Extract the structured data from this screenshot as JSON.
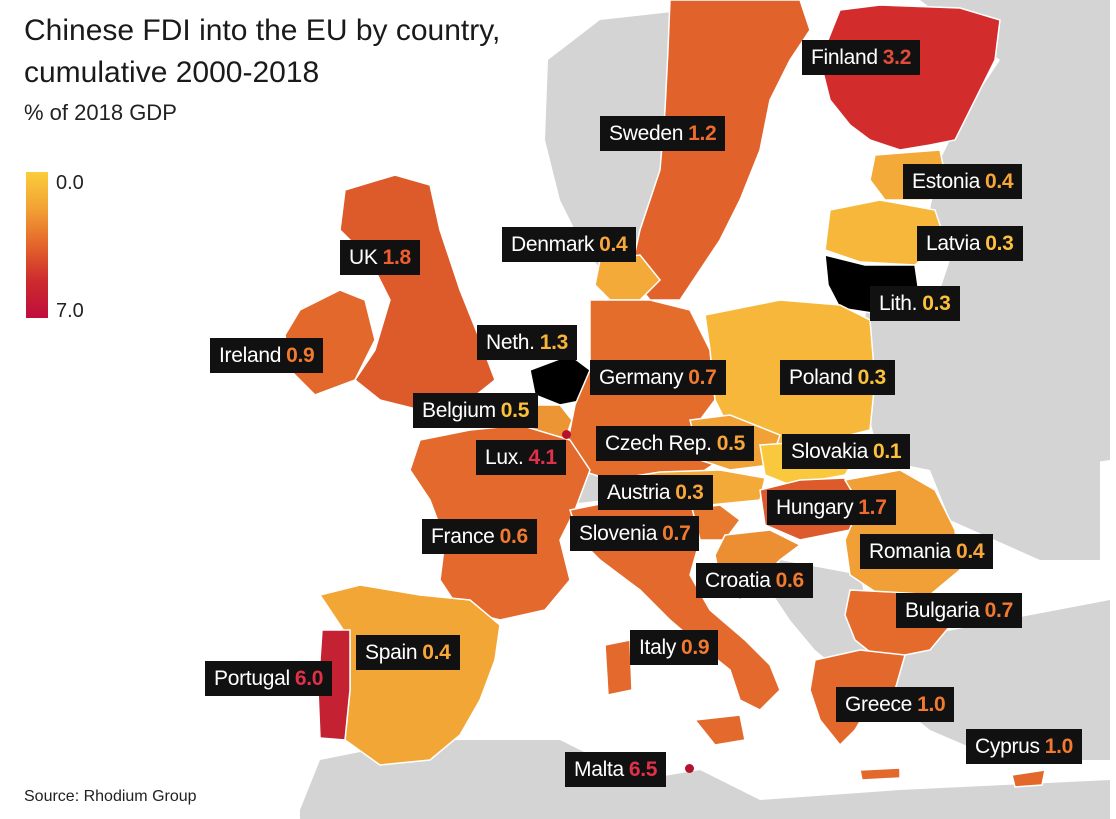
{
  "title_line1": "Chinese FDI into the EU by country,",
  "title_line2": "cumulative 2000-2018",
  "subtitle": "% of 2018 GDP",
  "legend": {
    "min_label": "0.0",
    "max_label": "7.0",
    "colors": [
      "#fbcd3a",
      "#f2a235",
      "#e4652b",
      "#cc2a2e",
      "#c00d3c"
    ]
  },
  "source": "Source: Rhodium Group",
  "colors": {
    "non_eu_land": "#d4d4d4",
    "border": "#ffffff",
    "label_bg": "#111111"
  },
  "countries": [
    {
      "key": "finland",
      "name": "Finland",
      "value": "3.2",
      "fill": "#d22c2c",
      "value_color": "#e04c3c"
    },
    {
      "key": "sweden",
      "name": "Sweden",
      "value": "1.2",
      "fill": "#e1622a",
      "value_color": "#ef6a2e"
    },
    {
      "key": "estonia",
      "name": "Estonia",
      "value": "0.4",
      "fill": "#f4aa38",
      "value_color": "#f8a63a"
    },
    {
      "key": "denmark",
      "name": "Denmark",
      "value": "0.4",
      "fill": "#f4aa38",
      "value_color": "#f8a63a"
    },
    {
      "key": "latvia",
      "name": "Latvia",
      "value": "0.3",
      "fill": "#f7b73b",
      "value_color": "#fbc13c"
    },
    {
      "key": "uk",
      "name": "UK",
      "value": "1.8",
      "fill": "#dd5a2b",
      "value_color": "#ef5e2e"
    },
    {
      "key": "lith",
      "name": "Lith.",
      "value": "0.3",
      "fill": "#f7b73b",
      "value_color": "#fbc13c"
    },
    {
      "key": "ireland",
      "name": "Ireland",
      "value": "0.9",
      "fill": "#e3682b",
      "value_color": "#f07a30"
    },
    {
      "key": "neth",
      "name": "Neth.",
      "value": "1.3",
      "fill": "#e3682b",
      "value_color": "#f6b53a"
    },
    {
      "key": "germany",
      "name": "Germany",
      "value": "0.7",
      "fill": "#e46d2c",
      "value_color": "#f07a30"
    },
    {
      "key": "poland",
      "name": "Poland",
      "value": "0.3",
      "fill": "#f7b73b",
      "value_color": "#fbc13c"
    },
    {
      "key": "belgium",
      "name": "Belgium",
      "value": "0.5",
      "fill": "#eb9534",
      "value_color": "#fbc13c"
    },
    {
      "key": "lux",
      "name": "Lux.",
      "value": "4.1",
      "fill": "#c41a38",
      "value_color": "#e0304a"
    },
    {
      "key": "czech",
      "name": "Czech Rep.",
      "value": "0.5",
      "fill": "#f1a236",
      "value_color": "#f8a63a"
    },
    {
      "key": "slovakia",
      "name": "Slovakia",
      "value": "0.1",
      "fill": "#f9c83d",
      "value_color": "#fbc13c"
    },
    {
      "key": "austria",
      "name": "Austria",
      "value": "0.3",
      "fill": "#f4aa38",
      "value_color": "#f8a63a"
    },
    {
      "key": "hungary",
      "name": "Hungary",
      "value": "1.7",
      "fill": "#dc5a2b",
      "value_color": "#ef6a2e"
    },
    {
      "key": "france",
      "name": "France",
      "value": "0.6",
      "fill": "#e3692c",
      "value_color": "#f07a30"
    },
    {
      "key": "slovenia",
      "name": "Slovenia",
      "value": "0.7",
      "fill": "#e77a2f",
      "value_color": "#f07a30"
    },
    {
      "key": "romania",
      "name": "Romania",
      "value": "0.4",
      "fill": "#f0a036",
      "value_color": "#f8a63a"
    },
    {
      "key": "croatia",
      "name": "Croatia",
      "value": "0.6",
      "fill": "#ec8f33",
      "value_color": "#f07a30"
    },
    {
      "key": "bulgaria",
      "name": "Bulgaria",
      "value": "0.7",
      "fill": "#e46b2c",
      "value_color": "#f07a30"
    },
    {
      "key": "spain",
      "name": "Spain",
      "value": "0.4",
      "fill": "#f2a636",
      "value_color": "#f8a63a"
    },
    {
      "key": "italy",
      "name": "Italy",
      "value": "0.9",
      "fill": "#e3692c",
      "value_color": "#f07a30"
    },
    {
      "key": "portugal",
      "name": "Portugal",
      "value": "6.0",
      "fill": "#c42233",
      "value_color": "#e0304a"
    },
    {
      "key": "greece",
      "name": "Greece",
      "value": "1.0",
      "fill": "#e3682b",
      "value_color": "#f07a30"
    },
    {
      "key": "cyprus",
      "name": "Cyprus",
      "value": "1.0",
      "fill": "#e3682b",
      "value_color": "#f07a30"
    },
    {
      "key": "malta",
      "name": "Malta",
      "value": "6.5",
      "fill": "#b5112f",
      "value_color": "#e0304a"
    }
  ]
}
